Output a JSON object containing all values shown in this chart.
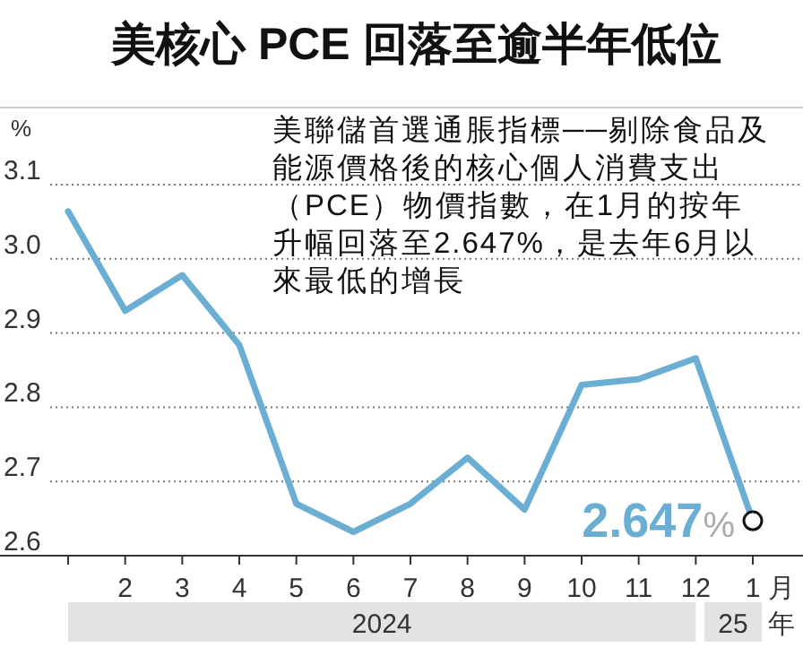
{
  "chart_data": {
    "type": "line",
    "title": "美核心 PCE 回落至逾半年低位",
    "ylabel": "%",
    "xlabel": "月",
    "categories": [
      null,
      "2",
      "3",
      "4",
      "5",
      "6",
      "7",
      "8",
      "9",
      "10",
      "11",
      "12",
      "1"
    ],
    "series": [
      {
        "color": "#6aaed3",
        "values": [
          3.064,
          2.93,
          2.978,
          2.884,
          2.67,
          2.632,
          2.67,
          2.732,
          2.662,
          2.83,
          2.838,
          2.866,
          2.647
        ],
        "value_labels": [
          null,
          null,
          null,
          null,
          null,
          null,
          null,
          null,
          null,
          null,
          null,
          null,
          "2.647%"
        ]
      }
    ],
    "ylim": [
      2.6,
      3.1
    ],
    "yticks": [
      {
        "value": 2.6,
        "label": "2.6"
      },
      {
        "value": 2.7,
        "label": "2.7"
      },
      {
        "value": 2.8,
        "label": "2.8"
      },
      {
        "value": 2.9,
        "label": "2.9"
      },
      {
        "value": 3.0,
        "label": "3.0"
      },
      {
        "value": 3.1,
        "label": "3.1"
      }
    ],
    "grid": "y",
    "annotations": [
      "美聯儲首選通脹指標──剔除食品及能源價格後的核心個人消費支出（PCE）物價指數，在1月的按年升幅回落至2.647%，是去年6月以來最低的增長",
      "2024",
      "25",
      "年"
    ]
  }
}
